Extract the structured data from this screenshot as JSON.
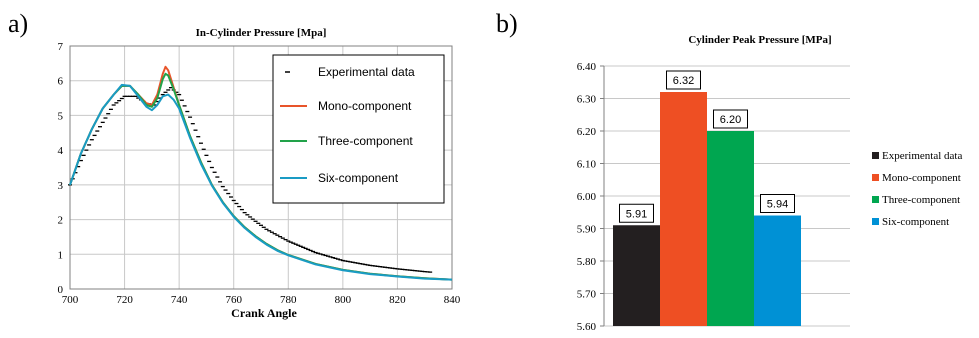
{
  "panels": {
    "a_label": "a)",
    "b_label": "b)"
  },
  "chart_data": [
    {
      "type": "line",
      "title": "In-Cylinder Pressure [Mpa]",
      "xlabel": "Crank Angle",
      "ylabel": "",
      "xlim": [
        700,
        840
      ],
      "ylim": [
        0,
        7
      ],
      "x_ticks": [
        "700",
        "720",
        "740",
        "760",
        "780",
        "800",
        "820",
        "840"
      ],
      "y_ticks": [
        "0",
        "1",
        "2",
        "3",
        "4",
        "5",
        "6",
        "7"
      ],
      "grid": true,
      "legend_position": "top-right",
      "series": [
        {
          "name": "Experimental data",
          "color": "#000000",
          "style": "markers",
          "x": [
            700,
            704,
            708,
            712,
            716,
            720,
            724,
            728,
            731,
            734,
            737,
            740,
            744,
            748,
            752,
            756,
            760,
            764,
            768,
            772,
            776,
            780,
            790,
            800,
            810,
            820,
            830,
            833
          ],
          "y": [
            3.0,
            3.7,
            4.3,
            4.8,
            5.3,
            5.55,
            5.55,
            5.35,
            5.3,
            5.6,
            5.8,
            5.6,
            4.95,
            4.2,
            3.5,
            2.95,
            2.55,
            2.2,
            1.95,
            1.72,
            1.55,
            1.38,
            1.05,
            0.82,
            0.68,
            0.58,
            0.5,
            0.48
          ]
        },
        {
          "name": "Mono-component",
          "color": "#E8542A",
          "style": "line",
          "x": [
            700,
            704,
            708,
            712,
            716,
            719,
            722,
            725,
            728,
            730,
            732,
            734,
            735,
            736,
            738,
            740,
            744,
            748,
            752,
            756,
            760,
            764,
            768,
            772,
            776,
            780,
            790,
            800,
            810,
            820,
            830,
            840
          ],
          "y": [
            3.0,
            3.9,
            4.6,
            5.2,
            5.6,
            5.85,
            5.85,
            5.6,
            5.35,
            5.3,
            5.6,
            6.2,
            6.4,
            6.3,
            5.8,
            5.3,
            4.4,
            3.65,
            3.0,
            2.5,
            2.1,
            1.78,
            1.52,
            1.3,
            1.12,
            0.98,
            0.72,
            0.55,
            0.44,
            0.37,
            0.31,
            0.27
          ]
        },
        {
          "name": "Three-component",
          "color": "#22A24A",
          "style": "line",
          "x": [
            700,
            704,
            708,
            712,
            716,
            719,
            722,
            725,
            728,
            730,
            732,
            734,
            735,
            736,
            738,
            740,
            744,
            748,
            752,
            756,
            760,
            764,
            768,
            772,
            776,
            780,
            790,
            800,
            810,
            820,
            830,
            840
          ],
          "y": [
            3.0,
            3.9,
            4.6,
            5.2,
            5.6,
            5.85,
            5.85,
            5.6,
            5.3,
            5.25,
            5.5,
            6.05,
            6.2,
            6.15,
            5.75,
            5.3,
            4.4,
            3.65,
            3.0,
            2.5,
            2.1,
            1.78,
            1.52,
            1.3,
            1.12,
            0.98,
            0.72,
            0.55,
            0.44,
            0.37,
            0.31,
            0.27
          ]
        },
        {
          "name": "Six-component",
          "color": "#1A9BC4",
          "style": "line",
          "x": [
            700,
            704,
            708,
            712,
            716,
            719,
            722,
            725,
            728,
            730,
            732,
            734,
            736,
            738,
            740,
            744,
            748,
            752,
            756,
            760,
            764,
            768,
            772,
            776,
            780,
            790,
            800,
            810,
            820,
            830,
            840
          ],
          "y": [
            3.0,
            3.9,
            4.6,
            5.2,
            5.6,
            5.88,
            5.85,
            5.55,
            5.25,
            5.15,
            5.3,
            5.55,
            5.6,
            5.45,
            5.2,
            4.35,
            3.6,
            2.98,
            2.48,
            2.08,
            1.76,
            1.5,
            1.28,
            1.1,
            0.97,
            0.71,
            0.54,
            0.43,
            0.36,
            0.3,
            0.27
          ]
        }
      ]
    },
    {
      "type": "bar",
      "title": "Cylinder Peak Pressure [MPa]",
      "xlabel": "",
      "ylabel": "",
      "ylim": [
        5.6,
        6.4
      ],
      "y_ticks": [
        "5.60",
        "5.70",
        "5.80",
        "5.90",
        "6.00",
        "6.10",
        "6.20",
        "6.30",
        "6.40"
      ],
      "grid": true,
      "legend_position": "right",
      "series": [
        {
          "name": "Experimental data",
          "value": 5.91,
          "label": "5.91",
          "color": "#231F20"
        },
        {
          "name": "Mono-component",
          "value": 6.32,
          "label": "6.32",
          "color": "#EE4F23"
        },
        {
          "name": "Three-component",
          "value": 6.2,
          "label": "6.20",
          "color": "#00A650"
        },
        {
          "name": "Six-component",
          "value": 5.94,
          "label": "5.94",
          "color": "#0091D5"
        }
      ]
    }
  ]
}
